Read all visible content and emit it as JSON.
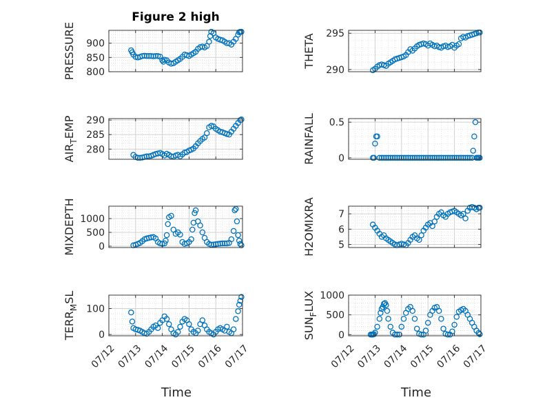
{
  "figure": {
    "xlabel": "Time"
  },
  "colors": {
    "marker": "#0072BD",
    "axis": "#262626",
    "grid": "#c8c8c8",
    "background": "#ffffff"
  },
  "x_ticks": [
    "07/12",
    "07/13",
    "07/14",
    "07/15",
    "07/16",
    "07/17"
  ],
  "chart_data": [
    {
      "id": "pressure",
      "type": "scatter",
      "title": "Figure 2 high",
      "ylabel": "PRESSURE",
      "xlim": [
        "07/12",
        "07/17"
      ],
      "ylim": [
        800,
        945
      ],
      "yticks": [
        "800",
        "850",
        "900"
      ],
      "grid": true,
      "x": [
        "07/12 20:00",
        "07/12 21:00",
        "07/12 22:00",
        "07/13 00:00",
        "07/13 02:00",
        "07/13 04:00",
        "07/13 06:00",
        "07/13 08:00",
        "07/13 10:00",
        "07/13 12:00",
        "07/13 14:00",
        "07/13 16:00",
        "07/13 18:00",
        "07/13 20:00",
        "07/13 22:00",
        "07/14 00:00",
        "07/14 01:00",
        "07/14 02:00",
        "07/14 04:00",
        "07/14 06:00",
        "07/14 08:00",
        "07/14 10:00",
        "07/14 12:00",
        "07/14 14:00",
        "07/14 16:00",
        "07/14 18:00",
        "07/14 20:00",
        "07/14 22:00",
        "07/15 00:00",
        "07/15 02:00",
        "07/15 04:00",
        "07/15 06:00",
        "07/15 08:00",
        "07/15 10:00",
        "07/15 12:00",
        "07/15 14:00",
        "07/15 16:00",
        "07/15 18:00",
        "07/15 19:00",
        "07/15 20:00",
        "07/15 22:00",
        "07/16 00:00",
        "07/16 02:00",
        "07/16 04:00",
        "07/16 06:00",
        "07/16 08:00",
        "07/16 10:00",
        "07/16 12:00",
        "07/16 14:00",
        "07/16 16:00",
        "07/16 18:00",
        "07/16 20:00",
        "07/16 21:00",
        "07/16 22:00",
        "07/16 23:00"
      ],
      "y": [
        875,
        868,
        860,
        852,
        850,
        852,
        855,
        856,
        855,
        855,
        855,
        854,
        855,
        855,
        853,
        840,
        835,
        842,
        840,
        832,
        828,
        830,
        835,
        840,
        845,
        852,
        860,
        858,
        855,
        860,
        865,
        870,
        880,
        886,
        888,
        885,
        890,
        905,
        925,
        940,
        935,
        920,
        915,
        912,
        910,
        905,
        900,
        900,
        895,
        905,
        915,
        930,
        938,
        940,
        940
      ]
    },
    {
      "id": "theta",
      "type": "scatter",
      "title": "",
      "ylabel": "THETA",
      "xlim": [
        "07/12",
        "07/17"
      ],
      "ylim": [
        289.7,
        295.4
      ],
      "yticks": [
        "290",
        "295"
      ],
      "grid": true,
      "x": [
        "07/12 22:00",
        "07/13 00:00",
        "07/13 02:00",
        "07/13 04:00",
        "07/13 06:00",
        "07/13 08:00",
        "07/13 10:00",
        "07/13 12:00",
        "07/13 14:00",
        "07/13 16:00",
        "07/13 18:00",
        "07/13 20:00",
        "07/13 22:00",
        "07/14 00:00",
        "07/14 02:00",
        "07/14 04:00",
        "07/14 06:00",
        "07/14 08:00",
        "07/14 10:00",
        "07/14 12:00",
        "07/14 14:00",
        "07/14 16:00",
        "07/14 18:00",
        "07/14 20:00",
        "07/14 22:00",
        "07/15 00:00",
        "07/15 02:00",
        "07/15 04:00",
        "07/15 06:00",
        "07/15 08:00",
        "07/15 10:00",
        "07/15 12:00",
        "07/15 14:00",
        "07/15 16:00",
        "07/15 18:00",
        "07/15 20:00",
        "07/15 22:00",
        "07/16 00:00",
        "07/16 02:00",
        "07/16 04:00",
        "07/16 06:00",
        "07/16 08:00",
        "07/16 10:00",
        "07/16 12:00",
        "07/16 14:00",
        "07/16 16:00",
        "07/16 18:00",
        "07/16 20:00",
        "07/16 22:00",
        "07/16 23:00"
      ],
      "y": [
        289.9,
        290.1,
        290.4,
        290.6,
        290.7,
        290.6,
        290.5,
        290.8,
        291.0,
        291.2,
        291.4,
        291.5,
        291.6,
        291.7,
        291.8,
        292.0,
        292.4,
        292.8,
        292.6,
        292.9,
        293.2,
        293.4,
        293.5,
        293.6,
        293.5,
        293.3,
        293.6,
        293.4,
        293.2,
        293.3,
        293.1,
        293.0,
        293.2,
        293.3,
        293.1,
        293.2,
        293.4,
        293.0,
        293.3,
        293.5,
        294.3,
        294.5,
        294.4,
        294.6,
        294.7,
        294.8,
        294.9,
        295.0,
        295.1,
        295.1
      ]
    },
    {
      "id": "air_temp",
      "type": "scatter",
      "title": "",
      "ylabel": "AIR_TEMP",
      "xlim": [
        "07/12",
        "07/17"
      ],
      "ylim": [
        276.5,
        290.5
      ],
      "yticks": [
        "280",
        "285",
        "290"
      ],
      "grid": true,
      "x": [
        "07/12 22:00",
        "07/13 00:00",
        "07/13 02:00",
        "07/13 04:00",
        "07/13 06:00",
        "07/13 08:00",
        "07/13 10:00",
        "07/13 12:00",
        "07/13 14:00",
        "07/13 16:00",
        "07/13 18:00",
        "07/13 20:00",
        "07/13 22:00",
        "07/14 00:00",
        "07/14 02:00",
        "07/14 04:00",
        "07/14 06:00",
        "07/14 08:00",
        "07/14 10:00",
        "07/14 12:00",
        "07/14 14:00",
        "07/14 16:00",
        "07/14 18:00",
        "07/14 20:00",
        "07/14 22:00",
        "07/15 00:00",
        "07/15 02:00",
        "07/15 04:00",
        "07/15 06:00",
        "07/15 08:00",
        "07/15 10:00",
        "07/15 12:00",
        "07/15 14:00",
        "07/15 16:00",
        "07/15 18:00",
        "07/15 20:00",
        "07/15 22:00",
        "07/16 00:00",
        "07/16 02:00",
        "07/16 04:00",
        "07/16 06:00",
        "07/16 08:00",
        "07/16 10:00",
        "07/16 12:00",
        "07/16 14:00",
        "07/16 16:00",
        "07/16 18:00",
        "07/16 20:00",
        "07/16 22:00",
        "07/16 23:00"
      ],
      "y": [
        278.0,
        277.3,
        277.0,
        277.0,
        277.1,
        277.3,
        277.5,
        277.5,
        277.7,
        278.0,
        278.3,
        278.5,
        278.7,
        278.3,
        277.8,
        278.4,
        278.0,
        277.5,
        277.4,
        277.8,
        278.0,
        277.5,
        278.2,
        278.8,
        279.0,
        279.5,
        279.8,
        280.2,
        281.0,
        282.0,
        282.8,
        283.5,
        284.0,
        285.5,
        287.5,
        288.0,
        287.8,
        287.0,
        286.5,
        286.0,
        285.8,
        285.5,
        285.2,
        285.0,
        286.0,
        287.0,
        288.0,
        289.0,
        290.0,
        290.2
      ]
    },
    {
      "id": "rainfall",
      "type": "scatter",
      "title": "",
      "ylabel": "RAINFALL",
      "xlim": [
        "07/12",
        "07/17"
      ],
      "ylim": [
        -0.02,
        0.55
      ],
      "yticks": [
        "0",
        "0.5"
      ],
      "grid": true,
      "x": [
        "07/12 22:00",
        "07/12 23:00",
        "07/13 00:00",
        "07/13 01:00",
        "07/13 02:00",
        "07/13 04:00",
        "07/13 06:00",
        "07/13 08:00",
        "07/13 10:00",
        "07/13 12:00",
        "07/13 14:00",
        "07/13 16:00",
        "07/13 18:00",
        "07/13 20:00",
        "07/13 22:00",
        "07/14 00:00",
        "07/14 02:00",
        "07/14 04:00",
        "07/14 06:00",
        "07/14 08:00",
        "07/14 10:00",
        "07/14 12:00",
        "07/14 14:00",
        "07/14 16:00",
        "07/14 18:00",
        "07/14 20:00",
        "07/14 22:00",
        "07/15 00:00",
        "07/15 02:00",
        "07/15 04:00",
        "07/15 06:00",
        "07/15 08:00",
        "07/15 10:00",
        "07/15 12:00",
        "07/15 14:00",
        "07/15 16:00",
        "07/15 18:00",
        "07/15 20:00",
        "07/15 22:00",
        "07/16 00:00",
        "07/16 02:00",
        "07/16 04:00",
        "07/16 06:00",
        "07/16 08:00",
        "07/16 10:00",
        "07/16 12:00",
        "07/16 14:00",
        "07/16 16:00",
        "07/16 17:00",
        "07/16 18:00",
        "07/16 19:00",
        "07/16 20:00",
        "07/16 21:00",
        "07/16 22:00",
        "07/16 23:00"
      ],
      "y": [
        0,
        0,
        0.2,
        0.3,
        0.3,
        0,
        0,
        0,
        0,
        0,
        0,
        0,
        0,
        0,
        0,
        0,
        0,
        0,
        0,
        0,
        0,
        0,
        0,
        0,
        0,
        0,
        0,
        0,
        0,
        0,
        0,
        0,
        0,
        0,
        0,
        0,
        0,
        0,
        0,
        0,
        0,
        0,
        0,
        0,
        0,
        0,
        0,
        0,
        0.1,
        0.3,
        0.5,
        0,
        0,
        0,
        0
      ]
    },
    {
      "id": "mixdepth",
      "type": "scatter",
      "title": "",
      "ylabel": "MIXDEPTH",
      "xlim": [
        "07/12",
        "07/17"
      ],
      "ylim": [
        -50,
        1450
      ],
      "yticks": [
        "0",
        "500",
        "1000"
      ],
      "grid": true,
      "x": [
        "07/12 22:00",
        "07/13 00:00",
        "07/13 02:00",
        "07/13 04:00",
        "07/13 06:00",
        "07/13 08:00",
        "07/13 10:00",
        "07/13 12:00",
        "07/13 14:00",
        "07/13 16:00",
        "07/13 18:00",
        "07/13 20:00",
        "07/13 22:00",
        "07/14 00:00",
        "07/14 02:00",
        "07/14 03:00",
        "07/14 04:00",
        "07/14 05:00",
        "07/14 06:00",
        "07/14 08:00",
        "07/14 10:00",
        "07/14 12:00",
        "07/14 14:00",
        "07/14 16:00",
        "07/14 18:00",
        "07/14 20:00",
        "07/14 22:00",
        "07/15 00:00",
        "07/15 02:00",
        "07/15 03:00",
        "07/15 04:00",
        "07/15 05:00",
        "07/15 06:00",
        "07/15 08:00",
        "07/15 10:00",
        "07/15 12:00",
        "07/15 14:00",
        "07/15 16:00",
        "07/15 18:00",
        "07/15 20:00",
        "07/15 22:00",
        "07/16 00:00",
        "07/16 02:00",
        "07/16 04:00",
        "07/16 06:00",
        "07/16 08:00",
        "07/16 10:00",
        "07/16 12:00",
        "07/16 14:00",
        "07/16 16:00",
        "07/16 17:00",
        "07/16 18:00",
        "07/16 19:00",
        "07/16 20:00",
        "07/16 21:00",
        "07/16 22:00",
        "07/16 23:00"
      ],
      "y": [
        30,
        50,
        80,
        120,
        180,
        250,
        280,
        300,
        320,
        330,
        280,
        150,
        100,
        80,
        100,
        200,
        400,
        800,
        1050,
        1100,
        600,
        450,
        500,
        420,
        150,
        80,
        100,
        150,
        250,
        600,
        850,
        1200,
        1300,
        900,
        750,
        500,
        300,
        150,
        80,
        50,
        60,
        70,
        80,
        90,
        100,
        100,
        100,
        120,
        250,
        550,
        1300,
        1350,
        900,
        400,
        200,
        80,
        30
      ]
    },
    {
      "id": "h2omixra",
      "type": "scatter",
      "title": "",
      "ylabel": "H2OMIXRA",
      "xlim": [
        "07/12",
        "07/17"
      ],
      "ylim": [
        4.8,
        7.5
      ],
      "yticks": [
        "5",
        "6",
        "7"
      ],
      "grid": true,
      "x": [
        "07/12 22:00",
        "07/13 00:00",
        "07/13 02:00",
        "07/13 04:00",
        "07/13 06:00",
        "07/13 08:00",
        "07/13 10:00",
        "07/13 12:00",
        "07/13 14:00",
        "07/13 16:00",
        "07/13 18:00",
        "07/13 20:00",
        "07/13 22:00",
        "07/14 00:00",
        "07/14 02:00",
        "07/14 04:00",
        "07/14 06:00",
        "07/14 08:00",
        "07/14 10:00",
        "07/14 12:00",
        "07/14 14:00",
        "07/14 16:00",
        "07/14 18:00",
        "07/14 20:00",
        "07/14 22:00",
        "07/15 00:00",
        "07/15 02:00",
        "07/15 04:00",
        "07/15 06:00",
        "07/15 08:00",
        "07/15 10:00",
        "07/15 12:00",
        "07/15 14:00",
        "07/15 16:00",
        "07/15 18:00",
        "07/15 20:00",
        "07/15 22:00",
        "07/16 00:00",
        "07/16 02:00",
        "07/16 04:00",
        "07/16 06:00",
        "07/16 08:00",
        "07/16 10:00",
        "07/16 12:00",
        "07/16 14:00",
        "07/16 16:00",
        "07/16 18:00",
        "07/16 20:00",
        "07/16 22:00",
        "07/16 23:00"
      ],
      "y": [
        6.3,
        6.1,
        5.9,
        5.7,
        5.5,
        5.6,
        5.4,
        5.3,
        5.2,
        5.1,
        5.0,
        4.95,
        5.0,
        5.05,
        5.0,
        4.95,
        5.1,
        5.3,
        5.5,
        5.6,
        5.4,
        5.3,
        5.6,
        5.9,
        6.1,
        6.3,
        6.4,
        6.2,
        6.5,
        6.8,
        7.0,
        7.1,
        6.9,
        6.8,
        7.0,
        7.1,
        7.15,
        7.2,
        7.1,
        7.0,
        6.9,
        7.0,
        6.7,
        7.2,
        7.4,
        7.45,
        7.4,
        7.3,
        7.4,
        7.4
      ]
    },
    {
      "id": "terr_msl",
      "type": "scatter",
      "title": "",
      "ylabel": "TERR_MSL",
      "xlim": [
        "07/12",
        "07/17"
      ],
      "ylim": [
        -5,
        152
      ],
      "yticks": [
        "0",
        "100"
      ],
      "grid": true,
      "x": [
        "07/12 20:00",
        "07/12 21:00",
        "07/12 22:00",
        "07/13 00:00",
        "07/13 02:00",
        "07/13 04:00",
        "07/13 06:00",
        "07/13 08:00",
        "07/13 10:00",
        "07/13 12:00",
        "07/13 14:00",
        "07/13 16:00",
        "07/13 18:00",
        "07/13 20:00",
        "07/13 22:00",
        "07/14 00:00",
        "07/14 02:00",
        "07/14 04:00",
        "07/14 06:00",
        "07/14 08:00",
        "07/14 10:00",
        "07/14 12:00",
        "07/14 14:00",
        "07/14 16:00",
        "07/14 18:00",
        "07/14 20:00",
        "07/14 22:00",
        "07/15 00:00",
        "07/15 02:00",
        "07/15 04:00",
        "07/15 06:00",
        "07/15 08:00",
        "07/15 10:00",
        "07/15 12:00",
        "07/15 14:00",
        "07/15 16:00",
        "07/15 18:00",
        "07/15 20:00",
        "07/15 22:00",
        "07/16 00:00",
        "07/16 02:00",
        "07/16 04:00",
        "07/16 06:00",
        "07/16 08:00",
        "07/16 10:00",
        "07/16 12:00",
        "07/16 14:00",
        "07/16 16:00",
        "07/16 18:00",
        "07/16 20:00",
        "07/16 21:00",
        "07/16 22:00",
        "07/16 23:00"
      ],
      "y": [
        85,
        50,
        25,
        20,
        18,
        15,
        10,
        5,
        3,
        10,
        20,
        30,
        35,
        25,
        45,
        55,
        70,
        60,
        40,
        20,
        5,
        0,
        10,
        30,
        50,
        60,
        55,
        40,
        20,
        10,
        5,
        15,
        40,
        55,
        35,
        20,
        10,
        5,
        0,
        10,
        20,
        25,
        20,
        15,
        30,
        10,
        5,
        20,
        60,
        90,
        115,
        130,
        145
      ]
    },
    {
      "id": "sun_flux",
      "type": "scatter",
      "title": "",
      "ylabel": "SUN_FLUX",
      "xlim": [
        "07/12",
        "07/17"
      ],
      "ylim": [
        -30,
        1000
      ],
      "yticks": [
        "0",
        "500",
        "1000"
      ],
      "grid": true,
      "x": [
        "07/12 20:00",
        "07/12 21:00",
        "07/12 22:00",
        "07/12 23:00",
        "07/13 00:00",
        "07/13 02:00",
        "07/13 04:00",
        "07/13 05:00",
        "07/13 06:00",
        "07/13 07:00",
        "07/13 08:00",
        "07/13 09:00",
        "07/13 10:00",
        "07/13 11:00",
        "07/13 12:00",
        "07/13 14:00",
        "07/13 16:00",
        "07/13 18:00",
        "07/13 20:00",
        "07/13 22:00",
        "07/14 00:00",
        "07/14 02:00",
        "07/14 04:00",
        "07/14 06:00",
        "07/14 08:00",
        "07/14 10:00",
        "07/14 12:00",
        "07/14 14:00",
        "07/14 16:00",
        "07/14 18:00",
        "07/14 20:00",
        "07/14 22:00",
        "07/15 00:00",
        "07/15 02:00",
        "07/15 04:00",
        "07/15 06:00",
        "07/15 08:00",
        "07/15 10:00",
        "07/15 12:00",
        "07/15 14:00",
        "07/15 16:00",
        "07/15 18:00",
        "07/15 20:00",
        "07/15 22:00",
        "07/16 00:00",
        "07/16 02:00",
        "07/16 04:00",
        "07/16 06:00",
        "07/16 08:00",
        "07/16 10:00",
        "07/16 12:00",
        "07/16 14:00",
        "07/16 16:00",
        "07/16 18:00",
        "07/16 20:00",
        "07/16 22:00",
        "07/16 23:00"
      ],
      "y": [
        0,
        0,
        0,
        10,
        50,
        200,
        400,
        550,
        650,
        700,
        780,
        800,
        750,
        600,
        400,
        200,
        50,
        0,
        0,
        0,
        200,
        400,
        550,
        650,
        700,
        600,
        400,
        150,
        20,
        0,
        0,
        100,
        300,
        500,
        600,
        680,
        700,
        600,
        400,
        150,
        20,
        0,
        0,
        80,
        250,
        450,
        580,
        620,
        650,
        600,
        500,
        400,
        300,
        200,
        100,
        40,
        10
      ]
    }
  ]
}
